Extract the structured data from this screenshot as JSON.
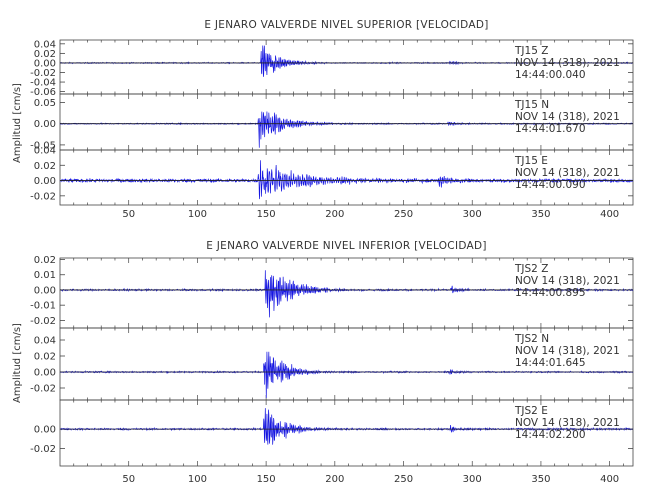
{
  "chart_data": [
    {
      "type": "line",
      "title": "E JENARO VALVERDE NIVEL SUPERIOR [VELOCIDAD]",
      "ylabel": "Amplitud [cm/s]",
      "xlim": [
        0,
        417
      ],
      "x_ticks": [
        50,
        100,
        150,
        200,
        250,
        300,
        350,
        400
      ],
      "x_tick_labels": [
        "50",
        "100",
        "150",
        "200",
        "250",
        "300",
        "350",
        "400"
      ],
      "color": "#1515e0",
      "traces": [
        {
          "station": "TJ15",
          "component": "Z",
          "date": "NOV 14 (318), 2021",
          "time": "14:44:00.040",
          "ylim": [
            -0.065,
            0.048
          ],
          "y_ticks": [
            0.04,
            0.02,
            0.0,
            -0.02,
            -0.04,
            -0.06
          ],
          "y_tick_labels": [
            "0.04",
            "0.02",
            "0.00",
            "-0.02",
            "-0.04",
            "-0.06"
          ],
          "events": [
            {
              "t": 146,
              "amp": 0.045,
              "decay": 12,
              "period": 1.2
            },
            {
              "t": 283,
              "amp": 0.006,
              "decay": 6,
              "period": 1.1
            }
          ],
          "noise": 0.001
        },
        {
          "station": "TJ15",
          "component": "N",
          "date": "NOV 14 (318), 2021",
          "time": "14:44:01.670",
          "ylim": [
            -0.062,
            0.07
          ],
          "y_ticks": [
            0.05,
            0.0,
            -0.05
          ],
          "y_tick_labels": [
            "0.05",
            "0.00",
            "-0.05"
          ],
          "events": [
            {
              "t": 144,
              "amp": 0.058,
              "decay": 16,
              "period": 1.3
            },
            {
              "t": 282,
              "amp": 0.007,
              "decay": 7,
              "period": 1.2
            }
          ],
          "noise": 0.0012
        },
        {
          "station": "TJ15",
          "component": "E",
          "date": "NOV 14 (318), 2021",
          "time": "14:44:00.090",
          "ylim": [
            -0.032,
            0.04
          ],
          "y_ticks": [
            0.04,
            0.02,
            0.0,
            -0.02
          ],
          "y_tick_labels": [
            "0.04",
            "0.02",
            "0.00",
            "-0.02"
          ],
          "events": [
            {
              "t": 144,
              "amp": 0.028,
              "decay": 30,
              "period": 1.6
            },
            {
              "t": 275,
              "amp": 0.009,
              "decay": 10,
              "period": 1.4
            }
          ],
          "noise": 0.002
        }
      ]
    },
    {
      "type": "line",
      "title": "E JENARO VALVERDE NIVEL INFERIOR [VELOCIDAD]",
      "ylabel": "Amplitud [cm/s]",
      "xlim": [
        0,
        417
      ],
      "x_ticks": [
        50,
        100,
        150,
        200,
        250,
        300,
        350,
        400
      ],
      "x_tick_labels": [
        "50",
        "100",
        "150",
        "200",
        "250",
        "300",
        "350",
        "400"
      ],
      "color": "#1515e0",
      "traces": [
        {
          "station": "TJS2",
          "component": "Z",
          "date": "NOV 14 (318), 2021",
          "time": "14:44:00.895",
          "ylim": [
            -0.025,
            0.021
          ],
          "y_ticks": [
            0.02,
            0.01,
            0.0,
            -0.01,
            -0.02
          ],
          "y_tick_labels": [
            "0.02",
            "0.01",
            "0.00",
            "-0.01",
            "-0.02"
          ],
          "events": [
            {
              "t": 149,
              "amp": 0.021,
              "decay": 16,
              "period": 1.2
            },
            {
              "t": 284,
              "amp": 0.003,
              "decay": 6,
              "period": 1.1
            }
          ],
          "noise": 0.0005
        },
        {
          "station": "TJS2",
          "component": "N",
          "date": "NOV 14 (318), 2021",
          "time": "14:44:01.645",
          "ylim": [
            -0.035,
            0.055
          ],
          "y_ticks": [
            0.04,
            0.02,
            0.0,
            -0.02
          ],
          "y_tick_labels": [
            "0.04",
            "0.02",
            "0.00",
            "-0.02"
          ],
          "events": [
            {
              "t": 148,
              "amp": 0.04,
              "decay": 12,
              "period": 1.2
            },
            {
              "t": 283,
              "amp": 0.004,
              "decay": 6,
              "period": 1.1
            }
          ],
          "noise": 0.0008
        },
        {
          "station": "TJS2",
          "component": "E",
          "date": "NOV 14 (318), 2021",
          "time": "14:44:02.200",
          "ylim": [
            -0.038,
            0.03
          ],
          "y_ticks": [
            0.0,
            -0.02
          ],
          "y_tick_labels": [
            "0.00",
            "-0.02"
          ],
          "events": [
            {
              "t": 148,
              "amp": 0.033,
              "decay": 12,
              "period": 1.2
            },
            {
              "t": 283,
              "amp": 0.004,
              "decay": 6,
              "period": 1.1
            }
          ],
          "noise": 0.0008
        }
      ]
    }
  ]
}
